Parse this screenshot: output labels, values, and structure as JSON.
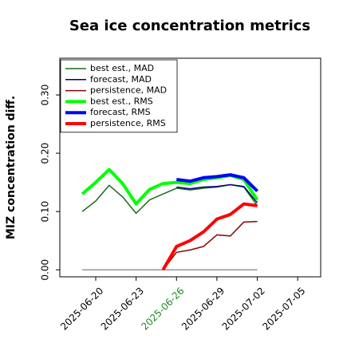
{
  "chart_data": {
    "type": "line",
    "title": "Sea ice concentration metrics",
    "y_label": "MIZ concentration diff.",
    "x": [
      "2025-06-19",
      "2025-06-20",
      "2025-06-21",
      "2025-06-22",
      "2025-06-23",
      "2025-06-24",
      "2025-06-25",
      "2025-06-26",
      "2025-06-27",
      "2025-06-28",
      "2025-06-29",
      "2025-06-30",
      "2025-07-01",
      "2025-07-02"
    ],
    "series": [
      {
        "name": "best est., MAD",
        "color": "#1a6b1a",
        "width": 1.5,
        "values": [
          0.1,
          0.118,
          0.145,
          0.125,
          0.097,
          0.12,
          0.13,
          0.14,
          0.137,
          0.14,
          0.142,
          0.146,
          0.142,
          0.11
        ]
      },
      {
        "name": "forecast,  MAD",
        "color": "#000080",
        "width": 1.5,
        "values": [
          null,
          null,
          null,
          null,
          null,
          null,
          null,
          0.142,
          0.139,
          0.142,
          0.143,
          0.146,
          0.143,
          0.115
        ]
      },
      {
        "name": "persistence, MAD",
        "color": "#8b0000",
        "width": 1.5,
        "values": [
          null,
          null,
          null,
          null,
          null,
          null,
          0.0,
          0.03,
          0.034,
          0.04,
          0.06,
          0.058,
          0.082,
          0.083
        ]
      },
      {
        "name": "best est., RMS",
        "color": "#00ff00",
        "width": 4,
        "values": [
          0.13,
          0.15,
          0.172,
          0.148,
          0.113,
          0.138,
          0.148,
          0.15,
          0.148,
          0.155,
          0.158,
          0.162,
          0.155,
          0.12
        ]
      },
      {
        "name": "forecast,  RMS",
        "color": "#0000ff",
        "width": 4,
        "values": [
          null,
          null,
          null,
          null,
          null,
          null,
          null,
          0.155,
          0.152,
          0.158,
          0.16,
          0.163,
          0.158,
          0.135
        ]
      },
      {
        "name": "persistence, RMS",
        "color": "#ff0000",
        "width": 4,
        "values": [
          null,
          null,
          null,
          null,
          null,
          null,
          0.0,
          0.04,
          0.05,
          0.065,
          0.087,
          0.095,
          0.113,
          0.11
        ]
      }
    ],
    "xlim": [
      "2025-06-17T08:00",
      "2025-07-06T17:00"
    ],
    "xticks": [
      "2025-06-20",
      "2025-06-23",
      "2025-06-26",
      "2025-06-29",
      "2025-07-02",
      "2025-07-05"
    ],
    "xtick_colors": [
      "#000000",
      "#000000",
      "#228b22",
      "#000000",
      "#000000",
      "#000000"
    ],
    "ylim": [
      -0.012,
      0.363
    ],
    "yticks": [
      {
        "value": 0,
        "label": "0.00"
      },
      {
        "value": 0.1,
        "label": "0.10"
      },
      {
        "value": 0.2,
        "label": "0.20"
      },
      {
        "value": 0.3,
        "label": "0.30"
      }
    ],
    "legend": "upper left"
  }
}
